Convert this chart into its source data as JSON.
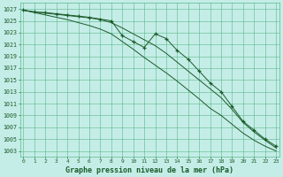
{
  "title": "Graphe pression niveau de la mer (hPa)",
  "bg_color": "#c5ede7",
  "grid_color": "#5ab88a",
  "line_color": "#1a5c2a",
  "ylim": [
    1002,
    1028
  ],
  "xlim": [
    -0.3,
    23.3
  ],
  "yticks": [
    1003,
    1005,
    1007,
    1009,
    1011,
    1013,
    1015,
    1017,
    1019,
    1021,
    1023,
    1025,
    1027
  ],
  "xticks": [
    0,
    1,
    2,
    3,
    4,
    5,
    6,
    7,
    8,
    9,
    10,
    11,
    12,
    13,
    14,
    15,
    16,
    17,
    18,
    19,
    20,
    21,
    22,
    23
  ],
  "line_main": [
    1026.8,
    1026.5,
    1026.4,
    1026.2,
    1026.0,
    1025.8,
    1025.6,
    1025.3,
    1025.0,
    1022.5,
    1021.5,
    1020.5,
    1022.8,
    1022.0,
    1020.0,
    1018.5,
    1016.5,
    1014.5,
    1013.0,
    1010.5,
    1008.0,
    1006.5,
    1005.0,
    1003.8
  ],
  "line_upper": [
    1026.8,
    1026.5,
    1026.3,
    1026.1,
    1025.9,
    1025.7,
    1025.5,
    1025.2,
    1024.7,
    1023.8,
    1022.8,
    1021.8,
    1020.8,
    1019.5,
    1018.0,
    1016.5,
    1015.0,
    1013.5,
    1012.0,
    1010.0,
    1007.8,
    1006.2,
    1004.8,
    1003.5
  ],
  "line_lower": [
    1026.8,
    1026.4,
    1026.0,
    1025.6,
    1025.2,
    1024.7,
    1024.2,
    1023.6,
    1022.8,
    1021.5,
    1020.2,
    1018.8,
    1017.5,
    1016.2,
    1014.8,
    1013.3,
    1011.8,
    1010.2,
    1009.0,
    1007.5,
    1006.0,
    1004.8,
    1003.8,
    1003.0
  ]
}
